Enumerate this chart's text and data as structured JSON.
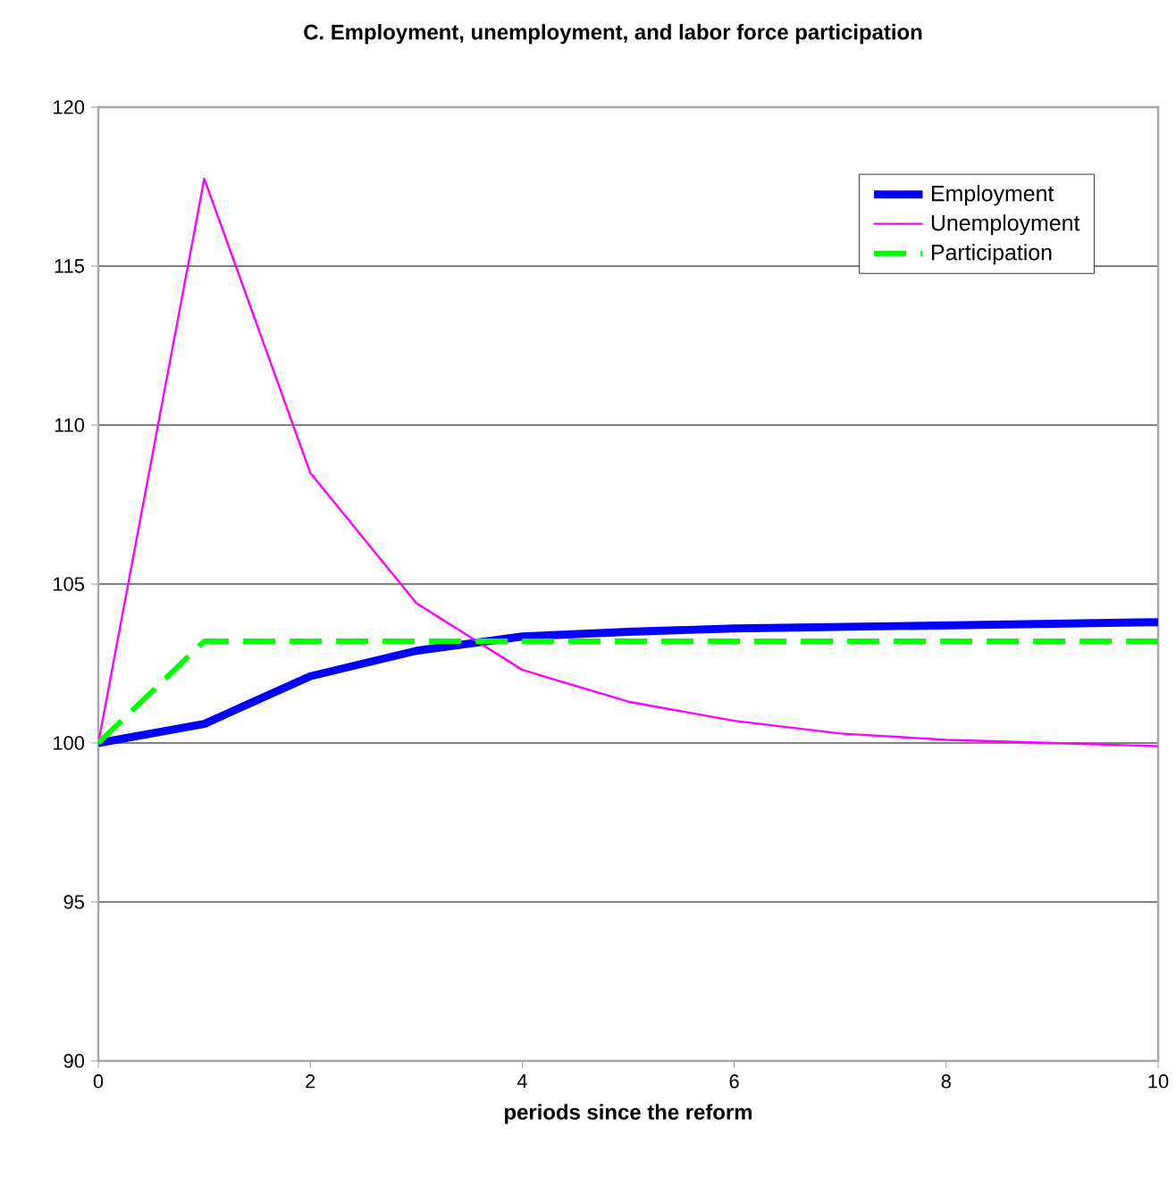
{
  "chart_data": {
    "type": "line",
    "title": "C. Employment, unemployment, and labor force participation",
    "xlabel": "periods since the reform",
    "x": [
      0,
      1,
      2,
      3,
      4,
      5,
      6,
      7,
      8,
      9,
      10
    ],
    "series": [
      {
        "name": "Employment",
        "color": "#0000ff",
        "line_style": "solid",
        "values": [
          100,
          100.6,
          102.1,
          102.9,
          103.35,
          103.5,
          103.6,
          103.65,
          103.7,
          103.75,
          103.8
        ]
      },
      {
        "name": "Unemployment",
        "color": "#ff00ff",
        "line_style": "solid",
        "values": [
          100,
          117.75,
          108.5,
          104.4,
          102.3,
          101.3,
          100.7,
          100.3,
          100.1,
          100,
          99.9
        ]
      },
      {
        "name": "Participation",
        "color": "#00ff00",
        "line_style": "dashed",
        "values": [
          100,
          103.2,
          103.2,
          103.2,
          103.2,
          103.2,
          103.2,
          103.2,
          103.2,
          103.2,
          103.2
        ]
      }
    ],
    "xlim": [
      0,
      10
    ],
    "ylim": [
      90,
      120
    ],
    "xticks": [
      0,
      2,
      4,
      6,
      8,
      10
    ],
    "yticks": [
      90,
      95,
      100,
      105,
      110,
      115,
      120
    ],
    "grid": "y",
    "legend": "top right",
    "marker": "none"
  }
}
